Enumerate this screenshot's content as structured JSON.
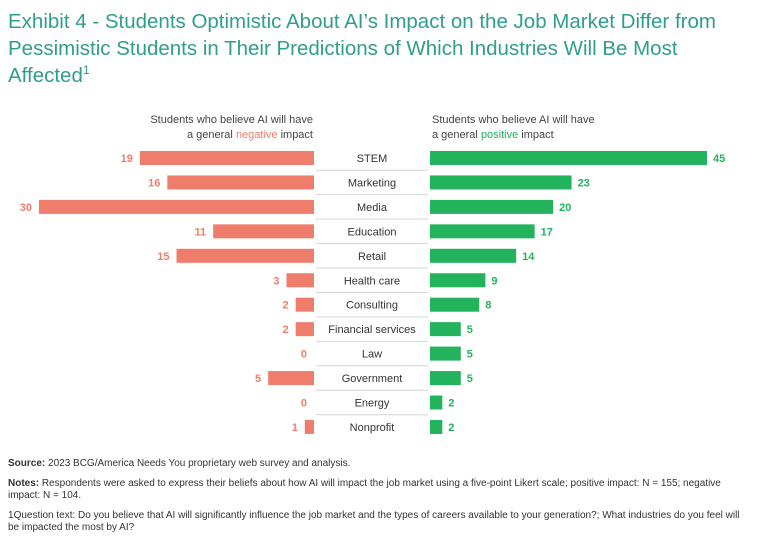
{
  "title": {
    "text": "Exhibit 4 - Students Optimistic About AI’s Impact on the Job Market Differ from Pessimistic Students in Their Predictions of Which Industries Will Be Most Affected",
    "footnote_mark": "1"
  },
  "headings": {
    "negative_line1": "Students who believe AI will have",
    "negative_line2_prefix": "a general ",
    "negative_highlight": "negative",
    "negative_line2_suffix": " impact",
    "positive_line1": "Students who believe AI will have",
    "positive_line2_prefix": "a general ",
    "positive_highlight": "positive",
    "positive_line2_suffix": " impact"
  },
  "colors": {
    "title": "#2f9e8c",
    "negative": "#ef7d6b",
    "positive": "#22b35c",
    "separator": "#d5d5d5"
  },
  "chart_data": {
    "type": "bar",
    "orientation": "horizontal-diverging",
    "categories": [
      "STEM",
      "Marketing",
      "Media",
      "Education",
      "Retail",
      "Health care",
      "Consulting",
      "Financial services",
      "Law",
      "Government",
      "Energy",
      "Nonprofit"
    ],
    "series": [
      {
        "name": "negative",
        "label": "Students who believe AI will have a general negative impact",
        "values": [
          19,
          16,
          30,
          11,
          15,
          3,
          2,
          2,
          0,
          5,
          0,
          1
        ]
      },
      {
        "name": "positive",
        "label": "Students who believe AI will have a general positive impact",
        "values": [
          45,
          23,
          20,
          17,
          14,
          9,
          8,
          5,
          5,
          5,
          2,
          2
        ]
      }
    ],
    "title": "Exhibit 4 - Students Optimistic About AI’s Impact on the Job Market Differ from Pessimistic Students in Their Predictions of Which Industries Will Be Most Affected",
    "xlabel": "",
    "ylabel": "",
    "grid": false,
    "legend": "top"
  },
  "notes": {
    "source_label": "Source:",
    "source_text": " 2023 BCG/America Needs You proprietary web survey and analysis.",
    "notes_label": "Notes:",
    "notes_text": " Respondents were asked to express their beliefs about how AI will impact the job market using a five-point Likert scale; positive impact: N = 155; negative impact: N = 104.",
    "footnote_mark": "1",
    "footnote_text": "Question text: Do you believe that AI will significantly influence the job market and the types of careers available to your generation?; What industries do you feel will be impacted the most by AI?"
  }
}
